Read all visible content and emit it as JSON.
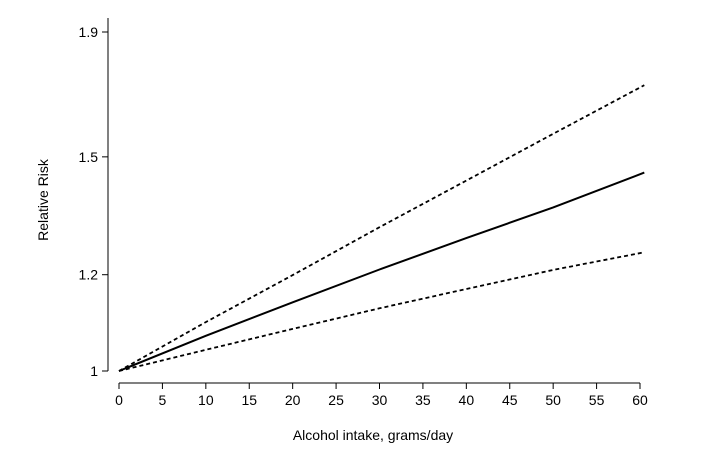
{
  "chart_data": {
    "type": "line",
    "title": "",
    "xlabel": "Alcohol intake, grams/day",
    "ylabel": "Relative Risk",
    "xlim": [
      0,
      61
    ],
    "ylim": [
      1.0,
      1.9
    ],
    "y_scale": "log",
    "x_ticks": [
      0,
      5,
      10,
      15,
      20,
      25,
      30,
      35,
      40,
      45,
      50,
      55,
      60
    ],
    "y_ticks": [
      1,
      1.2,
      1.5,
      1.9
    ],
    "y_tick_labels": [
      "1",
      "1.2",
      "1.5",
      "1.9"
    ],
    "grid": false,
    "series": [
      {
        "line_style": "solid",
        "color": "#000000",
        "x": [
          0,
          10,
          20,
          30,
          40,
          50,
          60.5
        ],
        "y": [
          1.0,
          1.069,
          1.139,
          1.212,
          1.286,
          1.363,
          1.456
        ]
      },
      {
        "line_style": "dashed",
        "color": "#000000",
        "x": [
          0,
          10,
          20,
          30,
          40,
          50,
          60.5
        ],
        "y": [
          1.0,
          1.097,
          1.199,
          1.313,
          1.434,
          1.567,
          1.718
        ]
      },
      {
        "line_style": "dashed",
        "color": "#000000",
        "x": [
          0,
          10,
          20,
          30,
          40,
          50,
          60.5
        ],
        "y": [
          1.0,
          1.041,
          1.083,
          1.126,
          1.168,
          1.211,
          1.252
        ]
      }
    ]
  }
}
